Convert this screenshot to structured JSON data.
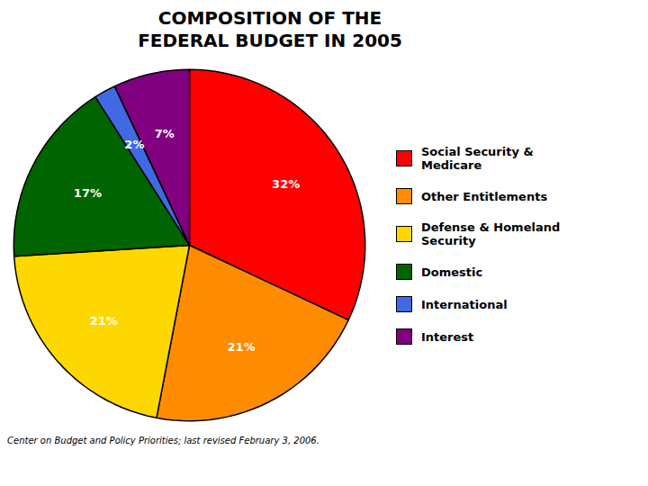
{
  "chart_data": {
    "type": "pie",
    "title": "COMPOSITION OF THE\nFEDERAL BUDGET IN 2005",
    "categories": [
      "Social Security &\nMedicare",
      "Other Entitlements",
      "Defense & Homeland\nSecurity",
      "Domestic",
      "International",
      "Interest"
    ],
    "values": [
      32,
      21,
      21,
      17,
      2,
      7
    ],
    "value_labels": [
      "32%",
      "21%",
      "21%",
      "17%",
      "2%",
      "7%"
    ],
    "colors": [
      "#ff0000",
      "#ff8c00",
      "#ffd700",
      "#006400",
      "#4169e1",
      "#800080"
    ],
    "data_labels": true,
    "legend": "right",
    "caption": "Center on Budget and Policy Priorities; last revised February 3, 2006."
  }
}
